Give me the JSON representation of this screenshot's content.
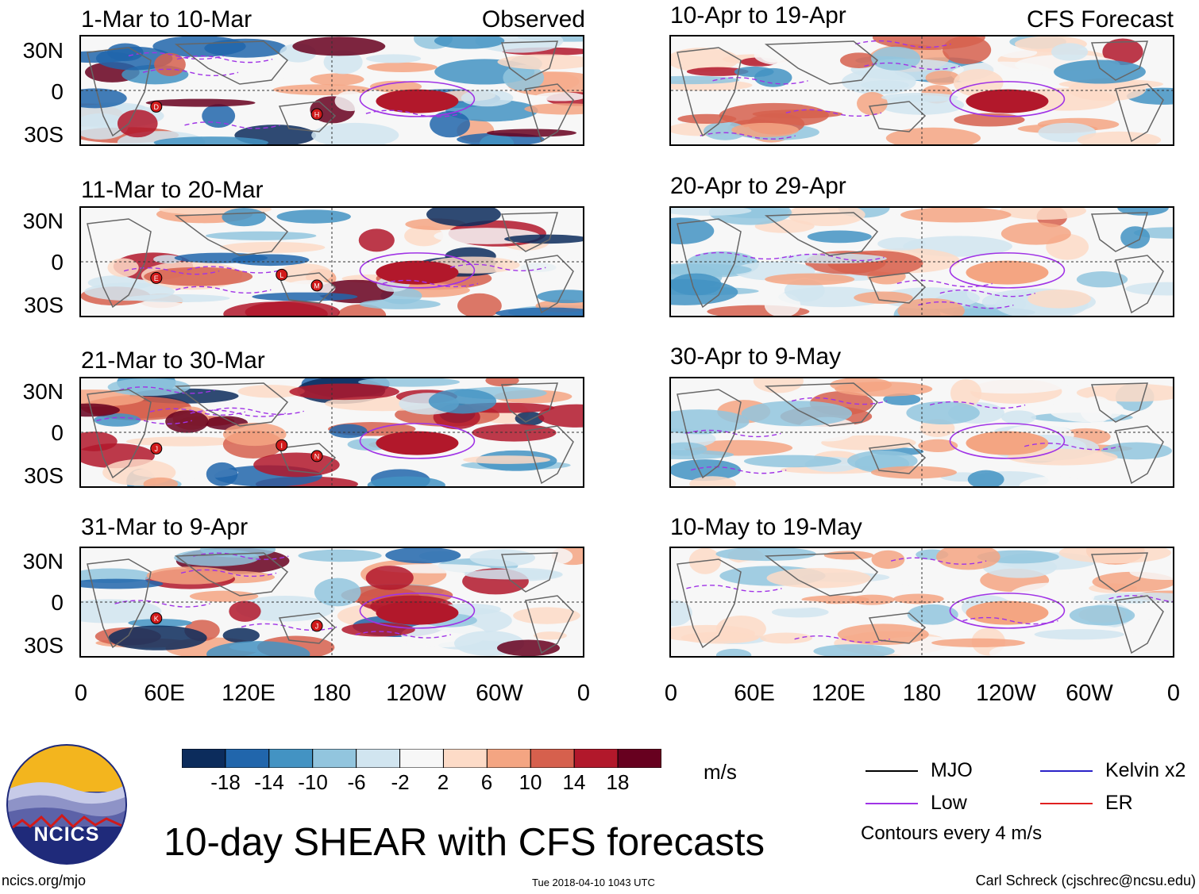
{
  "column_headers": {
    "observed": "Observed",
    "forecast": "CFS Forecast"
  },
  "chart_data": {
    "type": "heatmap",
    "title": "10-day SHEAR with CFS forecasts",
    "units": "m/s",
    "x_ticks": [
      "0",
      "60E",
      "120E",
      "180",
      "120W",
      "60W",
      "0"
    ],
    "y_ticks": [
      "30N",
      "0",
      "30S"
    ],
    "xlim_deg_east": [
      0,
      360
    ],
    "ylim_deg": [
      -40,
      40
    ],
    "colorbar": {
      "ticks": [
        "-18",
        "-14",
        "-10",
        "-6",
        "-2",
        "2",
        "6",
        "10",
        "14",
        "18"
      ],
      "colors": [
        "#0c2c5c",
        "#2166ac",
        "#4393c3",
        "#92c5de",
        "#d1e5f0",
        "#f7f7f7",
        "#fddbc7",
        "#f4a582",
        "#d6604d",
        "#b2182b",
        "#67001f"
      ]
    },
    "contours_note": "Contours every 4 m/s",
    "panels": [
      {
        "period": "1-Mar to 10-Mar",
        "source": "Observed",
        "storms": [
          "D",
          "H"
        ]
      },
      {
        "period": "11-Mar to 20-Mar",
        "source": "Observed",
        "storms": [
          "E",
          "M",
          "L"
        ]
      },
      {
        "period": "21-Mar to 30-Mar",
        "source": "Observed",
        "storms": [
          "J",
          "N",
          "I"
        ]
      },
      {
        "period": "31-Mar to 9-Apr",
        "source": "Observed",
        "storms": [
          "K",
          "J"
        ]
      },
      {
        "period": "10-Apr to 19-Apr",
        "source": "CFS Forecast",
        "storms": []
      },
      {
        "period": "20-Apr to 29-Apr",
        "source": "CFS Forecast",
        "storms": []
      },
      {
        "period": "30-Apr to 9-May",
        "source": "CFS Forecast",
        "storms": []
      },
      {
        "period": "10-May to 19-May",
        "source": "CFS Forecast",
        "storms": []
      }
    ],
    "legend": [
      {
        "label": "MJO",
        "color": "#000000"
      },
      {
        "label": "Kelvin x2",
        "color": "#2a22c8"
      },
      {
        "label": "Low",
        "color": "#a033e6"
      },
      {
        "label": "ER",
        "color": "#e02020"
      }
    ]
  },
  "logo": {
    "text": "NCICS"
  },
  "footer": {
    "url": "ncics.org/mjo",
    "timestamp": "Tue 2018-04-10 1043 UTC",
    "author": "Carl Schreck (cjschrec@ncsu.edu)"
  }
}
